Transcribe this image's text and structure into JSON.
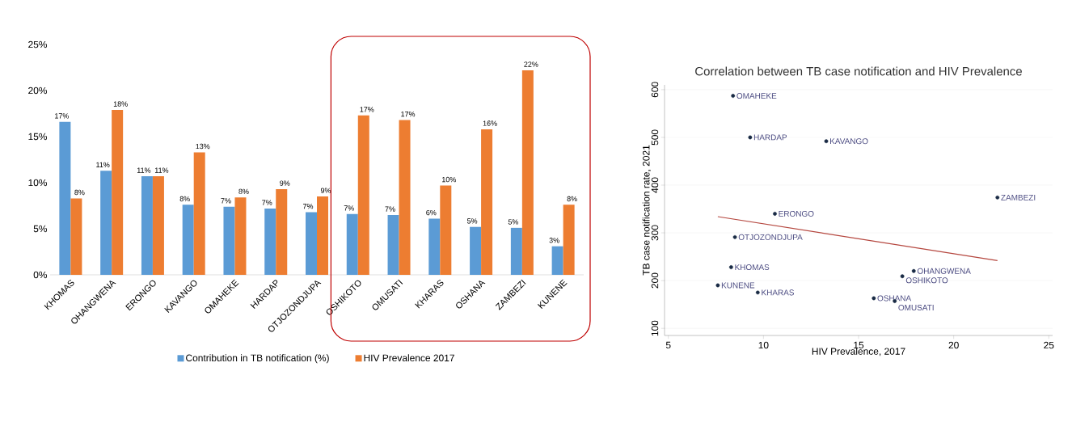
{
  "chart_data": [
    {
      "type": "bar",
      "categories": [
        "KHOMAS",
        "OHANGWENA",
        "ERONGO",
        "KAVANGO",
        "OMAHEKE",
        "HARDAP",
        "OTJOZONDJUPA",
        "OSHIKOTO",
        "OMUSATI",
        "KHARAS",
        "OSHANA",
        "ZAMBEZI",
        "KUNENE"
      ],
      "series": [
        {
          "name": "Contribution in TB notification (%)",
          "color": "#5b9bd5",
          "values": [
            16.6,
            11.3,
            10.7,
            7.6,
            7.4,
            7.2,
            6.8,
            6.6,
            6.5,
            6.1,
            5.2,
            5.1,
            3.1
          ],
          "value_labels": [
            "17%",
            "11%",
            "11%",
            "8%",
            "7%",
            "7%",
            "7%",
            "7%",
            "7%",
            "6%",
            "5%",
            "5%",
            "3%"
          ]
        },
        {
          "name": "HIV Prevalence 2017",
          "color": "#ed7d31",
          "values": [
            8.3,
            17.9,
            10.7,
            13.3,
            8.4,
            9.3,
            8.5,
            17.3,
            16.8,
            9.7,
            15.8,
            22.2,
            7.6
          ],
          "value_labels": [
            "8%",
            "18%",
            "11%",
            "13%",
            "8%",
            "9%",
            "9%",
            "17%",
            "17%",
            "10%",
            "16%",
            "22%",
            "8%"
          ]
        }
      ],
      "ylim": [
        0,
        25
      ],
      "yticks": [
        {
          "value": 0,
          "label": "0%"
        },
        {
          "value": 5,
          "label": "5%"
        },
        {
          "value": 10,
          "label": "10%"
        },
        {
          "value": 15,
          "label": "15%"
        },
        {
          "value": 20,
          "label": "20%"
        },
        {
          "value": 25,
          "label": "25%"
        }
      ],
      "legend": "bottom",
      "grid": false
    },
    {
      "type": "scatter",
      "title": "Correlation between TB case notification and HIV Prevalence",
      "xlabel": "HIV Prevalence, 2017",
      "ylabel": "TB case notification rate, 2021",
      "series": [
        {
          "type": "scatter",
          "marker": "circle",
          "color": "#1a2b45",
          "x": [
            8.4,
            9.3,
            13.3,
            22.3,
            10.6,
            8.5,
            8.3,
            17.9,
            17.3,
            7.6,
            9.7,
            15.8,
            16.9
          ],
          "values": [
            587,
            500,
            492,
            374,
            340,
            291,
            228,
            220,
            209,
            190,
            175,
            163,
            157
          ]
        },
        {
          "type": "line",
          "marker": "none",
          "color": "#b5473f",
          "x": [
            7.6,
            22.3
          ],
          "values": [
            334,
            242
          ]
        }
      ],
      "annotations": [
        {
          "text": "OMAHEKE",
          "x": 8.4,
          "y": 587
        },
        {
          "text": "HARDAP",
          "x": 9.3,
          "y": 500
        },
        {
          "text": "KAVANGO",
          "x": 13.3,
          "y": 492
        },
        {
          "text": "ZAMBEZI",
          "x": 22.3,
          "y": 374
        },
        {
          "text": "ERONGO",
          "x": 10.6,
          "y": 340
        },
        {
          "text": "OTJOZONDJUPA",
          "x": 8.5,
          "y": 291
        },
        {
          "text": "KHOMAS",
          "x": 8.3,
          "y": 228
        },
        {
          "text": "OHANGWENA",
          "x": 17.9,
          "y": 220
        },
        {
          "text": "OSHIKOTO",
          "x": 17.3,
          "y": 209
        },
        {
          "text": "KUNENE",
          "x": 7.6,
          "y": 190
        },
        {
          "text": "KHARAS",
          "x": 9.7,
          "y": 175
        },
        {
          "text": "OSHANA",
          "x": 15.8,
          "y": 163
        },
        {
          "text": "OMUSATI",
          "x": 16.9,
          "y": 157
        }
      ],
      "xlim": [
        4.8,
        25.2
      ],
      "ylim": [
        85,
        610
      ],
      "xticks": [
        5,
        10,
        15,
        20,
        25
      ],
      "yticks": [
        100,
        200,
        300,
        400,
        500,
        600
      ],
      "grid": "y",
      "legend": false
    }
  ]
}
